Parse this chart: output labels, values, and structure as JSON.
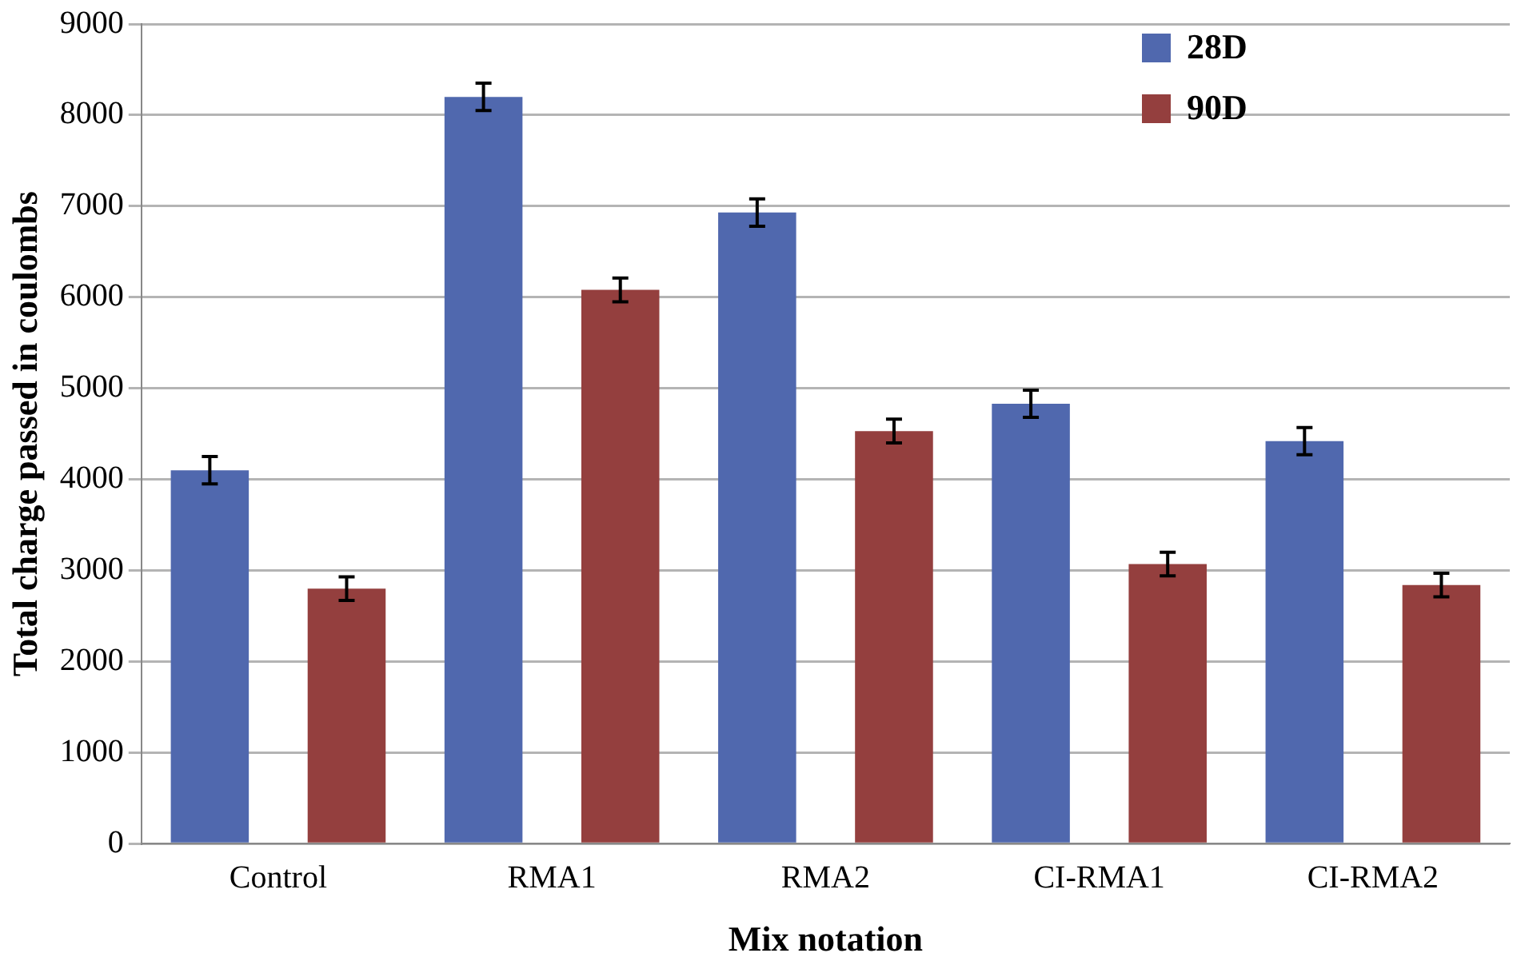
{
  "chart_data": {
    "type": "bar",
    "xlabel": "Mix notation",
    "ylabel": "Total charge passed in coulombs",
    "categories": [
      "Control",
      "RMA1",
      "RMA2",
      "CI-RMA1",
      "CI-RMA2"
    ],
    "series": [
      {
        "name": "28D",
        "color": "#5068ae",
        "values": [
          4100,
          8200,
          6930,
          4830,
          4420
        ],
        "errors": [
          150,
          150,
          150,
          150,
          150
        ]
      },
      {
        "name": "90D",
        "color": "#943f3e",
        "values": [
          2800,
          6080,
          4530,
          3070,
          2840
        ],
        "errors": [
          130,
          130,
          130,
          130,
          130
        ]
      }
    ],
    "ylim": [
      0,
      9000
    ],
    "yticks": [
      0,
      1000,
      2000,
      3000,
      4000,
      5000,
      6000,
      7000,
      8000,
      9000
    ],
    "grid": "y",
    "legend": "top right"
  }
}
